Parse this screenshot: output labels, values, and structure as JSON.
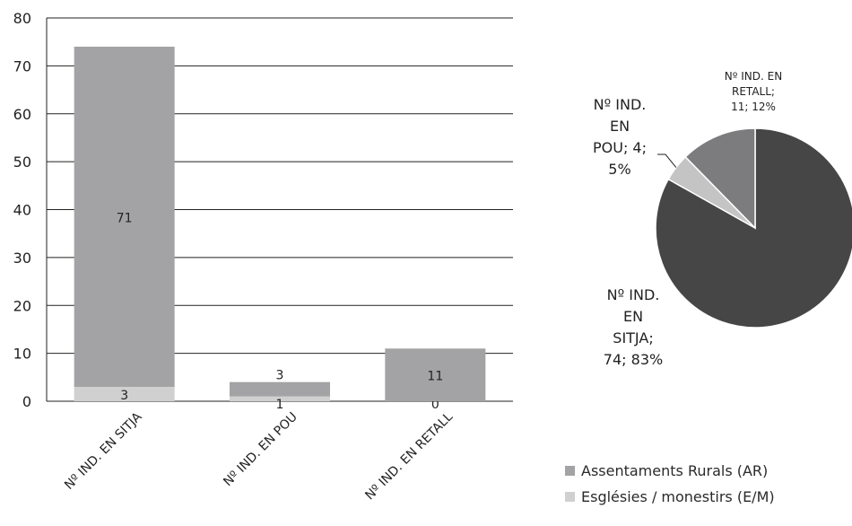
{
  "chart_data": [
    {
      "type": "bar",
      "stacked": true,
      "categories": [
        "Nº IND. EN SITJA",
        "Nº IND. EN POU",
        "Nº IND. EN RETALL"
      ],
      "series": [
        {
          "name": "Esglésies / monestirs (E/M)",
          "values": [
            3,
            1,
            0
          ],
          "color": "#d0d0d0"
        },
        {
          "name": "Assentaments Rurals (AR)",
          "values": [
            71,
            3,
            11
          ],
          "color": "#a3a3a5"
        }
      ],
      "ylim": [
        0,
        80
      ],
      "yticks": [
        0,
        10,
        20,
        30,
        40,
        50,
        60,
        70,
        80
      ],
      "grid": true,
      "data_labels": true
    },
    {
      "type": "pie",
      "slices": [
        {
          "label": "Nº IND. EN SITJA",
          "value": 74,
          "percent": "83%",
          "color": "#464646",
          "label_lines": [
            "Nº IND.",
            "EN",
            "SITJA;",
            "74; 83%"
          ]
        },
        {
          "label": "Nº IND. EN POU",
          "value": 4,
          "percent": "5%",
          "color": "#c4c4c4",
          "label_lines": [
            "Nº IND.",
            "EN",
            "POU; 4;",
            "5%"
          ]
        },
        {
          "label": "Nº IND. EN RETALL",
          "value": 11,
          "percent": "12%",
          "color": "#7c7c7e",
          "label_lines": [
            "Nº IND. EN",
            "RETALL;",
            "11; 12%"
          ]
        }
      ]
    }
  ],
  "legend": {
    "position": "bottom-right",
    "items": [
      {
        "label": "Assentaments Rurals (AR)",
        "color": "#a3a3a5"
      },
      {
        "label": "Esglésies / monestirs (E/M)",
        "color": "#d0d0d0"
      }
    ]
  }
}
